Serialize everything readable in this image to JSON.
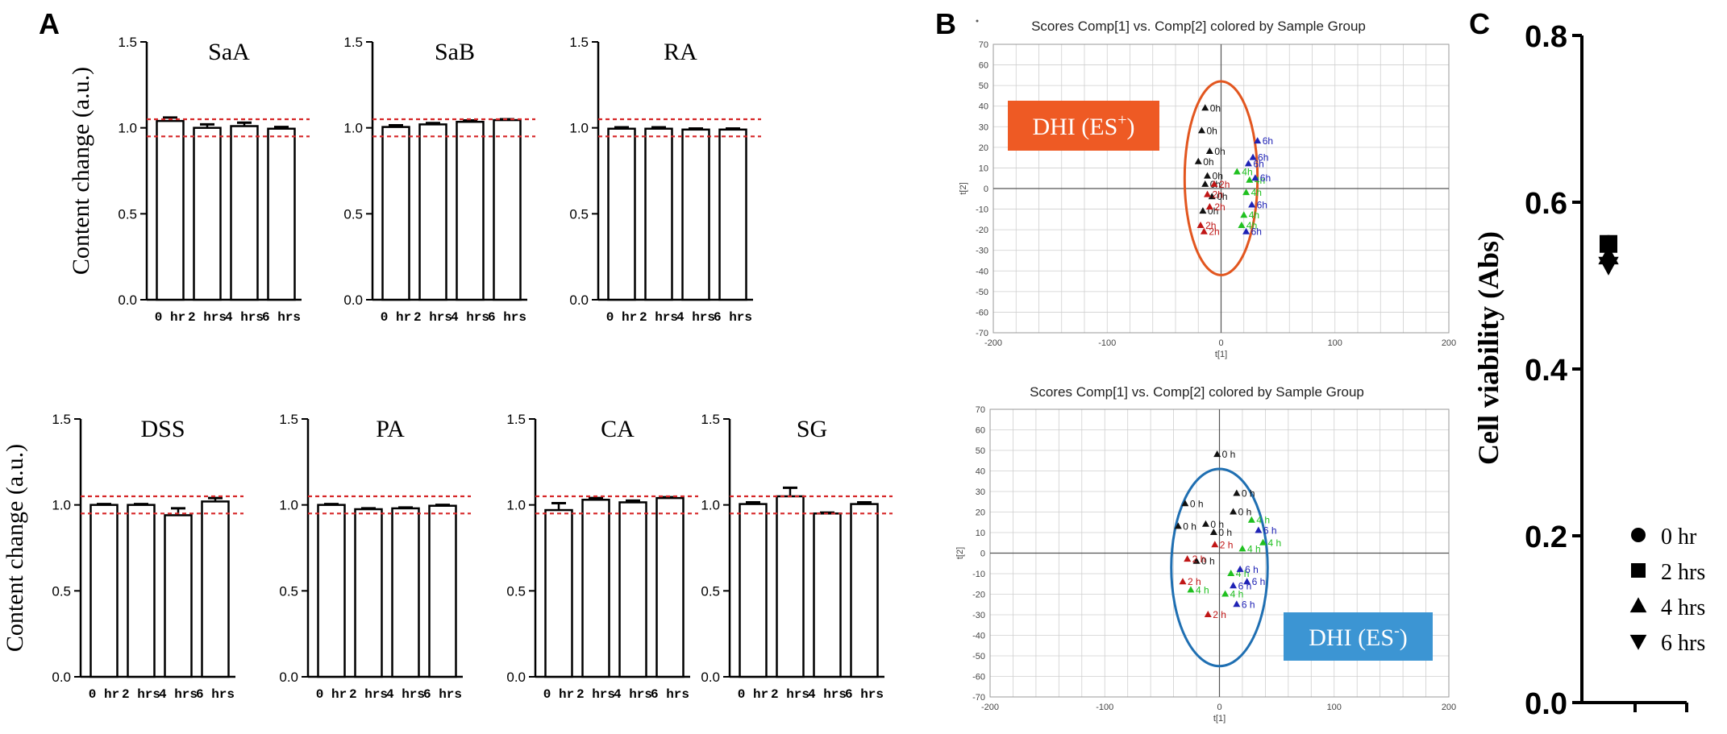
{
  "panel_labels": {
    "a": "A",
    "b": "B",
    "c": "C"
  },
  "colors": {
    "axis": "#000000",
    "bar_fill": "#ffffff",
    "ref_line": "#d62728",
    "grid": "#cfcfcf",
    "ellipse_pos": "#e2561f",
    "ellipse_neg": "#1f6fb2",
    "box_pos": "#ee5a24",
    "box_neg": "#3c95d3",
    "g0": "#111111",
    "g2": "#c01616",
    "g4": "#20c020",
    "g6": "#1f23b5"
  },
  "chart_data": [
    {
      "id": "A",
      "type": "bar",
      "ylabel": "Content change (a.u.)",
      "yticks": [
        "0.0",
        "0.5",
        "1.0",
        "1.5"
      ],
      "ylim": [
        0,
        1.5
      ],
      "ref_lines": [
        1.05,
        0.95
      ],
      "categories": [
        "0 hr",
        "2 hrs",
        "4 hrs",
        "6 hrs"
      ],
      "subplots": [
        {
          "title": "SaA",
          "values": [
            1.04,
            1.0,
            1.01,
            0.995
          ],
          "errors": [
            0.02,
            0.02,
            0.02,
            0.01
          ]
        },
        {
          "title": "SaB",
          "values": [
            1.005,
            1.02,
            1.035,
            1.045
          ],
          "errors": [
            0.01,
            0.008,
            0.008,
            0.005
          ]
        },
        {
          "title": "RA",
          "values": [
            0.995,
            0.995,
            0.99,
            0.99
          ],
          "errors": [
            0.008,
            0.008,
            0.006,
            0.006
          ]
        },
        {
          "title": "DSS",
          "values": [
            1.0,
            1.0,
            0.94,
            1.02
          ],
          "errors": [
            0.005,
            0.005,
            0.04,
            0.02
          ]
        },
        {
          "title": "PA",
          "values": [
            1.0,
            0.975,
            0.98,
            0.995
          ],
          "errors": [
            0.005,
            0.005,
            0.005,
            0.005
          ]
        },
        {
          "title": "CA",
          "values": [
            0.97,
            1.03,
            1.015,
            1.04
          ],
          "errors": [
            0.04,
            0.01,
            0.01,
            0.005
          ]
        },
        {
          "title": "SG",
          "values": [
            1.005,
            1.05,
            0.95,
            1.005
          ],
          "errors": [
            0.01,
            0.05,
            0.005,
            0.01
          ]
        }
      ]
    },
    {
      "id": "B",
      "type": "scatter",
      "title": "Scores Comp[1] vs. Comp[2] colored by Sample Group",
      "xlabel": "t[1]",
      "ylabel": "t[2]",
      "xlim": [
        -200,
        200
      ],
      "ylim": [
        -70,
        70
      ],
      "xticks": [
        "-200",
        "-100",
        "0",
        "100",
        "200"
      ],
      "yticks": [
        "70",
        "60",
        "50",
        "40",
        "30",
        "20",
        "10",
        "0",
        "-10",
        "-20",
        "-30",
        "-40",
        "-50",
        "-60",
        "-70"
      ],
      "plots": [
        {
          "mode": "DHI (ES",
          "mode_sup": "+",
          "mode_close": ")",
          "ellipse": {
            "cx": 0,
            "cy": 5,
            "rx": 32,
            "ry": 47
          },
          "points": [
            {
              "x": -14,
              "y": 39,
              "label": "0h",
              "group": "g0"
            },
            {
              "x": -17,
              "y": 28,
              "label": "0h",
              "group": "g0"
            },
            {
              "x": -10,
              "y": 18,
              "label": "0h",
              "group": "g0"
            },
            {
              "x": -20,
              "y": 13,
              "label": "0h",
              "group": "g0"
            },
            {
              "x": -12,
              "y": 6,
              "label": "0h",
              "group": "g0"
            },
            {
              "x": -16,
              "y": -11,
              "label": "0h",
              "group": "g0"
            },
            {
              "x": -14,
              "y": 2,
              "label": "0h",
              "group": "g0"
            },
            {
              "x": -8,
              "y": -4,
              "label": "0h",
              "group": "g0"
            },
            {
              "x": -18,
              "y": -18,
              "label": "2h",
              "group": "g2"
            },
            {
              "x": -12,
              "y": -3,
              "label": "2h",
              "group": "g2"
            },
            {
              "x": -15,
              "y": -21,
              "label": "2h",
              "group": "g2"
            },
            {
              "x": -6,
              "y": 2,
              "label": "2h",
              "group": "g2"
            },
            {
              "x": -10,
              "y": -9,
              "label": "2h",
              "group": "g2"
            },
            {
              "x": 14,
              "y": 8,
              "label": "4h",
              "group": "g4"
            },
            {
              "x": 22,
              "y": -2,
              "label": "4h",
              "group": "g4"
            },
            {
              "x": 18,
              "y": -18,
              "label": "4h",
              "group": "g4"
            },
            {
              "x": 25,
              "y": 4,
              "label": "4h",
              "group": "g4"
            },
            {
              "x": 20,
              "y": -13,
              "label": "4h",
              "group": "g4"
            },
            {
              "x": 32,
              "y": 23,
              "label": "6h",
              "group": "g6"
            },
            {
              "x": 24,
              "y": 12,
              "label": "6h",
              "group": "g6"
            },
            {
              "x": 28,
              "y": 15,
              "label": "6h",
              "group": "g6"
            },
            {
              "x": 30,
              "y": 5,
              "label": "6h",
              "group": "g6"
            },
            {
              "x": 27,
              "y": -8,
              "label": "6h",
              "group": "g6"
            },
            {
              "x": 22,
              "y": -21,
              "label": "6h",
              "group": "g6"
            }
          ]
        },
        {
          "mode": "DHI (ES",
          "mode_sup": "-",
          "mode_close": ")",
          "ellipse": {
            "cx": 0,
            "cy": -7,
            "rx": 42,
            "ry": 48
          },
          "points": [
            {
              "x": -2,
              "y": 48,
              "label": "0 h",
              "group": "g0"
            },
            {
              "x": -30,
              "y": 24,
              "label": "0 h",
              "group": "g0"
            },
            {
              "x": 15,
              "y": 29,
              "label": "0 h",
              "group": "g0"
            },
            {
              "x": 12,
              "y": 20,
              "label": "0 h",
              "group": "g0"
            },
            {
              "x": -36,
              "y": 13,
              "label": "0 h",
              "group": "g0"
            },
            {
              "x": -12,
              "y": 14,
              "label": "0 h",
              "group": "g0"
            },
            {
              "x": -5,
              "y": 10,
              "label": "0 h",
              "group": "g0"
            },
            {
              "x": -20,
              "y": -4,
              "label": "0 h",
              "group": "g0"
            },
            {
              "x": -28,
              "y": -3,
              "label": "2 h",
              "group": "g2"
            },
            {
              "x": -32,
              "y": -14,
              "label": "2 h",
              "group": "g2"
            },
            {
              "x": -10,
              "y": -30,
              "label": "2 h",
              "group": "g2"
            },
            {
              "x": -4,
              "y": 4,
              "label": "2 h",
              "group": "g2"
            },
            {
              "x": -25,
              "y": -18,
              "label": "4 h",
              "group": "g4"
            },
            {
              "x": 28,
              "y": 16,
              "label": "4 h",
              "group": "g4"
            },
            {
              "x": 20,
              "y": 2,
              "label": "4 h",
              "group": "g4"
            },
            {
              "x": 38,
              "y": 5,
              "label": "4 h",
              "group": "g4"
            },
            {
              "x": 10,
              "y": -10,
              "label": "4 h",
              "group": "g4"
            },
            {
              "x": 5,
              "y": -20,
              "label": "4 h",
              "group": "g4"
            },
            {
              "x": 34,
              "y": 11,
              "label": "6 h",
              "group": "g6"
            },
            {
              "x": 18,
              "y": -8,
              "label": "6 h",
              "group": "g6"
            },
            {
              "x": 12,
              "y": -16,
              "label": "6 h",
              "group": "g6"
            },
            {
              "x": 15,
              "y": -25,
              "label": "6 h",
              "group": "g6"
            },
            {
              "x": 24,
              "y": -14,
              "label": "6 h",
              "group": "g6"
            }
          ]
        }
      ]
    },
    {
      "id": "C",
      "type": "scatter",
      "ylabel": "Cell viability (Abs)",
      "ylim": [
        0,
        0.8
      ],
      "yticks": [
        "0.0",
        "0.2",
        "0.4",
        "0.6",
        "0.8"
      ],
      "series": [
        {
          "name": "0 hr",
          "marker": "circle",
          "value": 0.55
        },
        {
          "name": "2 hrs",
          "marker": "square",
          "value": 0.55
        },
        {
          "name": "4 hrs",
          "marker": "triangle-up",
          "value": 0.535
        },
        {
          "name": "6 hrs",
          "marker": "triangle-down",
          "value": 0.525
        }
      ]
    }
  ]
}
